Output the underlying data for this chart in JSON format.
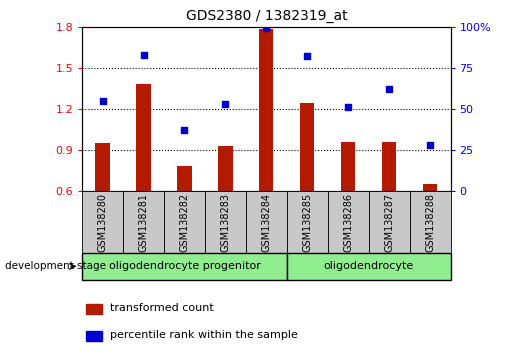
{
  "title": "GDS2380 / 1382319_at",
  "samples": [
    "GSM138280",
    "GSM138281",
    "GSM138282",
    "GSM138283",
    "GSM138284",
    "GSM138285",
    "GSM138286",
    "GSM138287",
    "GSM138288"
  ],
  "bar_values": [
    0.95,
    1.38,
    0.78,
    0.93,
    1.78,
    1.24,
    0.96,
    0.96,
    0.65
  ],
  "scatter_values": [
    55,
    83,
    37,
    53,
    99,
    82,
    51,
    62,
    28
  ],
  "ylim_left": [
    0.6,
    1.8
  ],
  "ylim_right": [
    0,
    100
  ],
  "yticks_left": [
    0.6,
    0.9,
    1.2,
    1.5,
    1.8
  ],
  "ytick_labels_left": [
    "0.6",
    "0.9",
    "1.2",
    "1.5",
    "1.8"
  ],
  "yticks_right": [
    0,
    25,
    50,
    75,
    100
  ],
  "ytick_labels_right": [
    "0",
    "25",
    "50",
    "75",
    "100%"
  ],
  "bar_color": "#b31a00",
  "scatter_color": "#0000cc",
  "groups": [
    {
      "label": "oligodendrocyte progenitor",
      "start": 0,
      "end": 5,
      "color": "#90ee90"
    },
    {
      "label": "oligodendrocyte",
      "start": 5,
      "end": 9,
      "color": "#90ee90"
    }
  ],
  "group_box_color": "#c8c8c8",
  "legend_bar_label": "transformed count",
  "legend_scatter_label": "percentile rank within the sample",
  "dev_stage_label": "development stage",
  "figure_width": 5.3,
  "figure_height": 3.54,
  "dpi": 100
}
